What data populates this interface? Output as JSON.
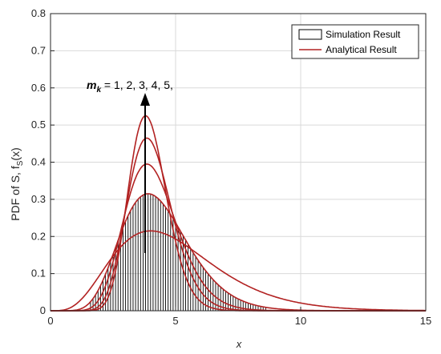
{
  "chart_data": {
    "type": "line",
    "xlabel": "x",
    "ylabel": "PDF of S, f",
    "ylabel_sub": "S",
    "ylabel_tail": "(x)",
    "xlim": [
      0,
      15
    ],
    "ylim": [
      0,
      0.8
    ],
    "xticks": [
      "0",
      "5",
      "10",
      "15"
    ],
    "yticks": [
      "0",
      "0.1",
      "0.2",
      "0.3",
      "0.4",
      "0.5",
      "0.6",
      "0.7",
      "0.8"
    ],
    "grid": true,
    "legend_position": "top-right",
    "legend": [
      "Simulation Result",
      "Analytical Result"
    ],
    "annotation": {
      "prefix": "m",
      "subscript": "k",
      "text": " = 1, 2, 3, 4, 5,"
    },
    "colors": {
      "analytical": "#b22222",
      "simulation": "#000000",
      "grid": "#d9d9d9",
      "axes": "#262626"
    },
    "analytical_series": [
      {
        "m_k": 1,
        "mode_x": 4.0,
        "peak": 0.215,
        "shape": 5.0
      },
      {
        "m_k": 2,
        "mode_x": 3.9,
        "peak": 0.315,
        "shape": 9.5
      },
      {
        "m_k": 3,
        "mode_x": 3.85,
        "peak": 0.395,
        "shape": 14.5
      },
      {
        "m_k": 4,
        "mode_x": 3.85,
        "peak": 0.465,
        "shape": 20.0
      },
      {
        "m_k": 5,
        "mode_x": 3.8,
        "peak": 0.525,
        "shape": 26.0
      }
    ],
    "simulation_histogram": {
      "bin_width": 0.1,
      "x_start": 1.6,
      "x_end": 8.6,
      "follows_series_m_k": 2
    }
  }
}
